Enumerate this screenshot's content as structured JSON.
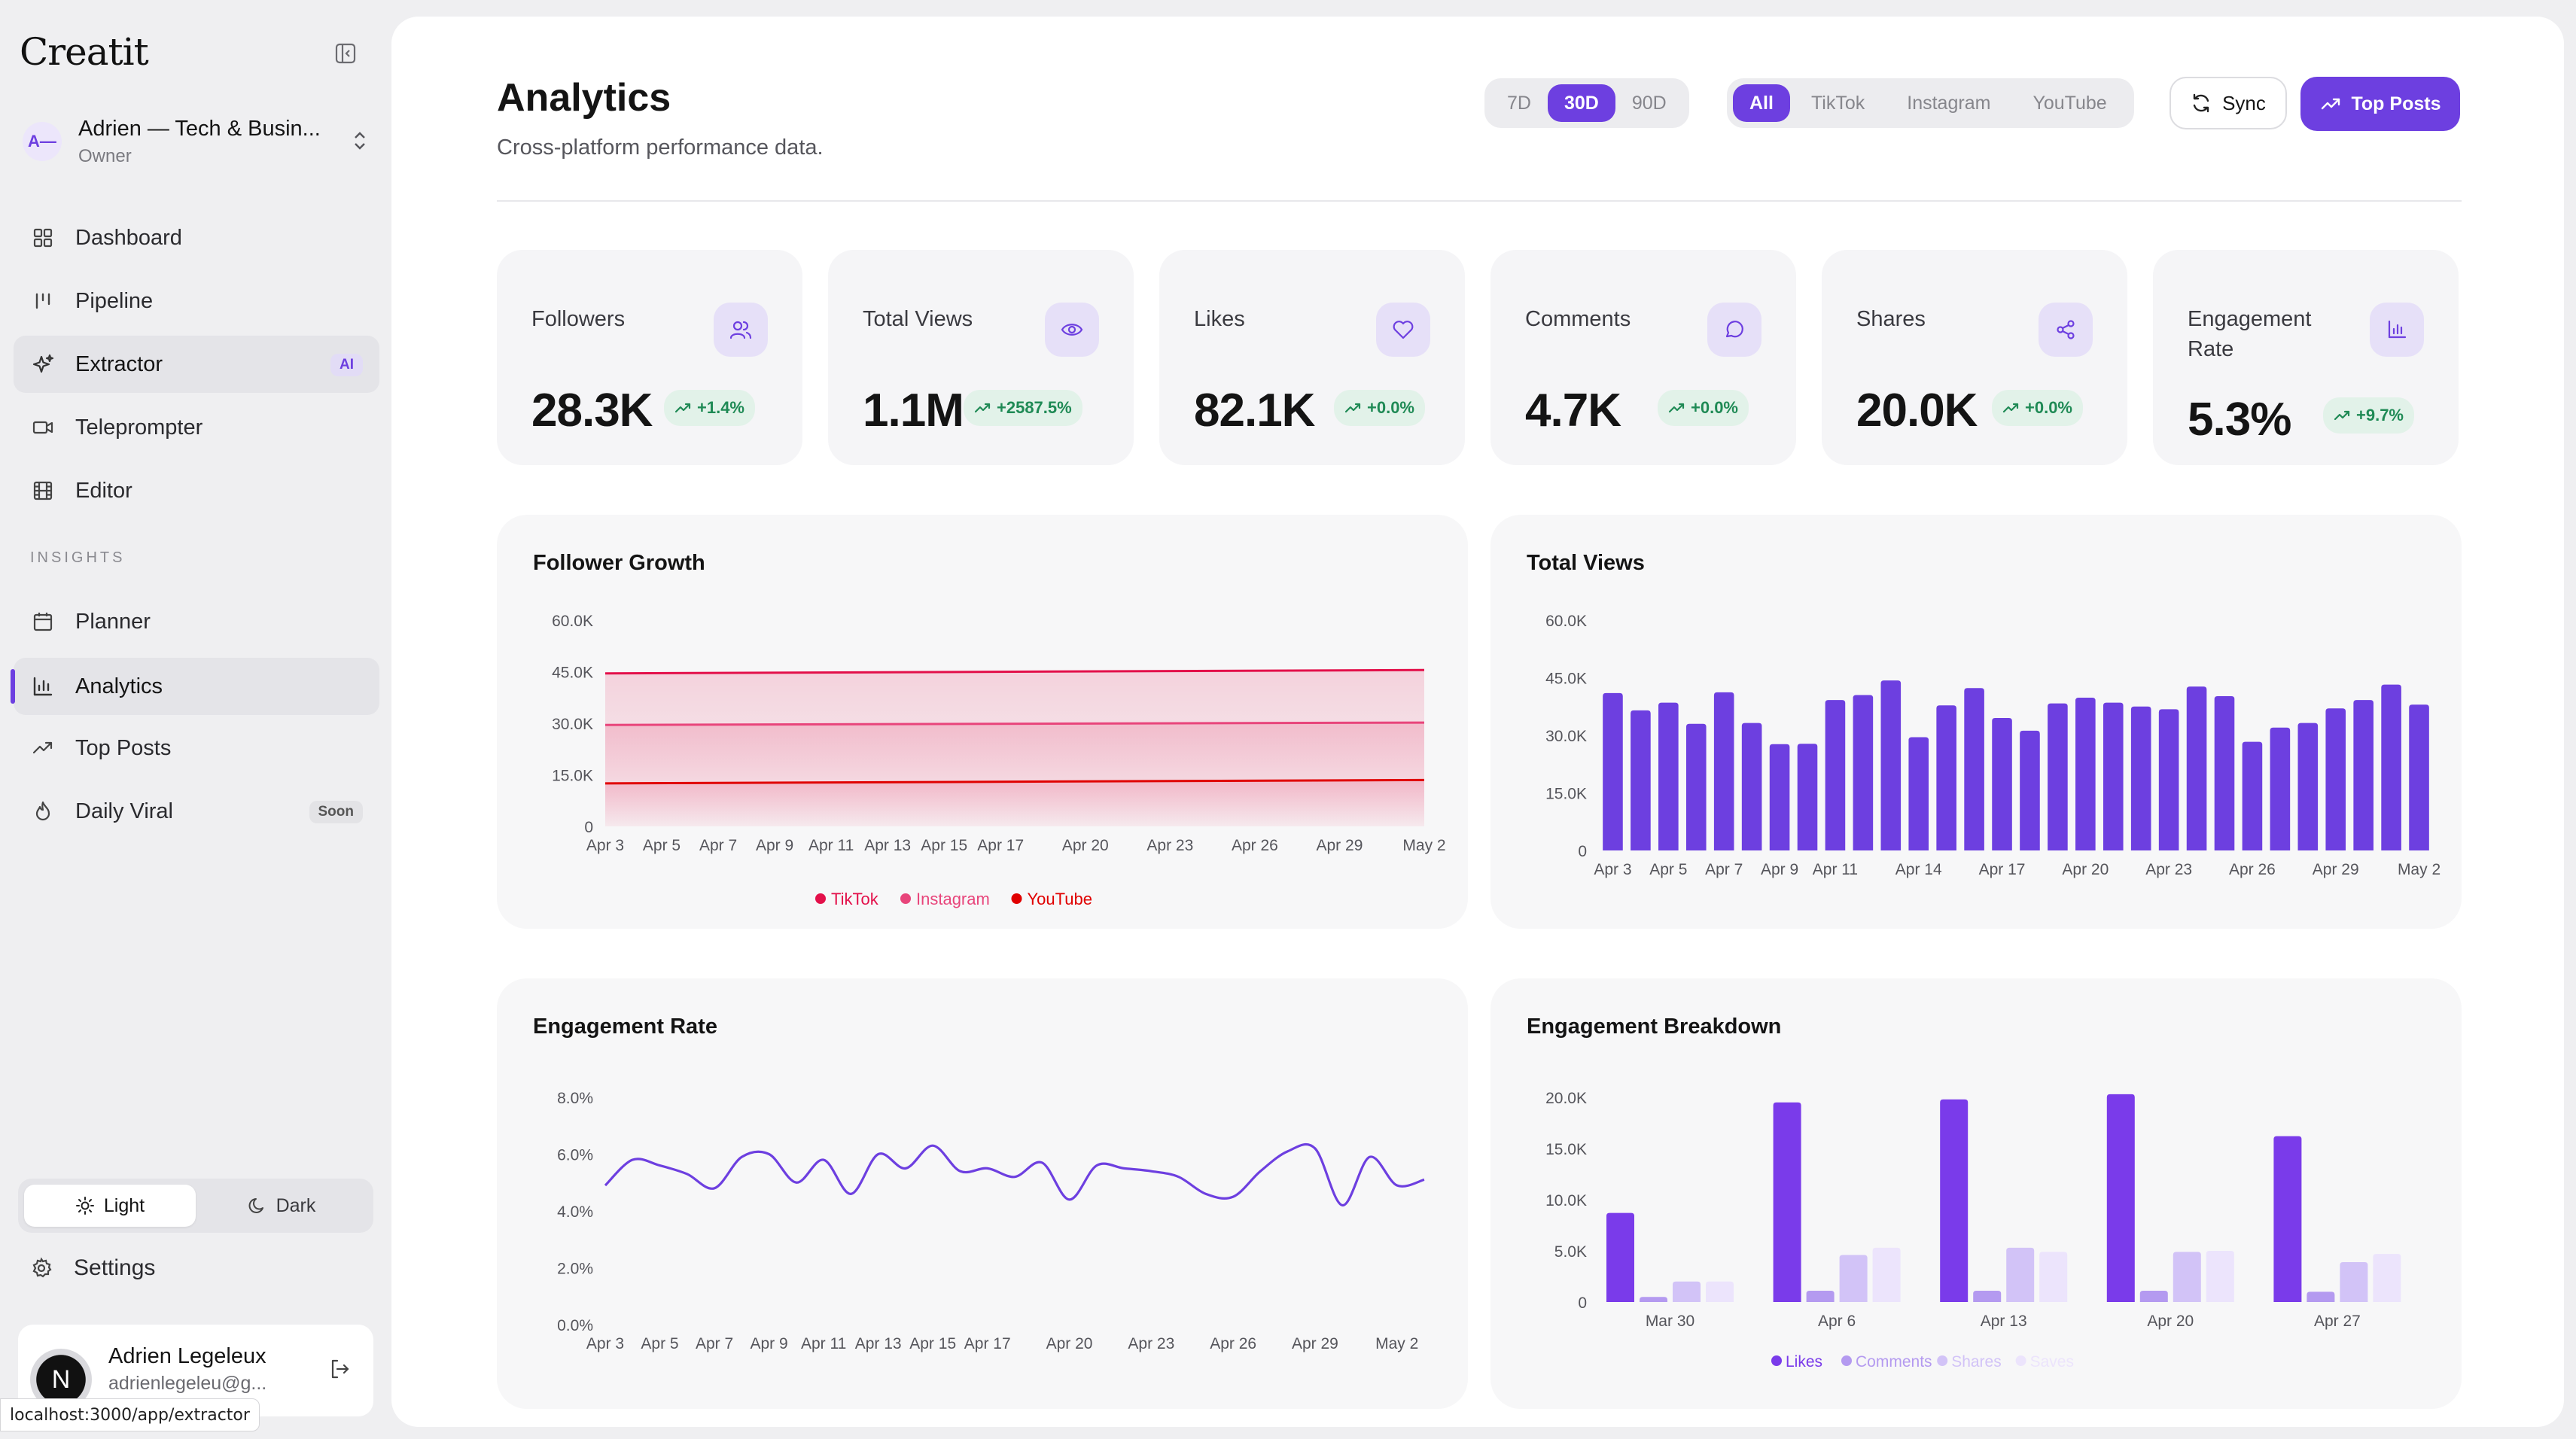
{
  "app": {
    "brand": "Creatit"
  },
  "workspace": {
    "initials": "A—",
    "name": "Adrien — Tech & Busin...",
    "role": "Owner"
  },
  "nav": {
    "items": [
      {
        "label": "Dashboard",
        "icon": "grid-icon"
      },
      {
        "label": "Pipeline",
        "icon": "pipeline-icon"
      },
      {
        "label": "Extractor",
        "icon": "sparkles-icon",
        "badge": "AI"
      },
      {
        "label": "Teleprompter",
        "icon": "video-icon"
      },
      {
        "label": "Editor",
        "icon": "film-icon"
      }
    ],
    "section_label": "INSIGHTS",
    "insights": [
      {
        "label": "Planner",
        "icon": "calendar-icon"
      },
      {
        "label": "Analytics",
        "icon": "bar-chart-icon"
      },
      {
        "label": "Top Posts",
        "icon": "trending-icon"
      },
      {
        "label": "Daily Viral",
        "icon": "flame-icon",
        "badge": "Soon"
      }
    ]
  },
  "theme": {
    "light": "Light",
    "dark": "Dark",
    "selected": "Light"
  },
  "settings_label": "Settings",
  "user": {
    "initial": "N",
    "name": "Adrien Legeleux",
    "email": "adrienlegeleu@g..."
  },
  "status_url": "localhost:3000/app/extractor",
  "header": {
    "title": "Analytics",
    "subtitle": "Cross-platform performance data.",
    "ranges": [
      "7D",
      "30D",
      "90D"
    ],
    "range_selected": "30D",
    "platforms": [
      "All",
      "TikTok",
      "Instagram",
      "YouTube"
    ],
    "platform_selected": "All",
    "sync_label": "Sync",
    "top_posts_label": "Top Posts"
  },
  "stats": [
    {
      "label": "Followers",
      "value": "28.3K",
      "delta": "+1.4%",
      "icon": "users-icon"
    },
    {
      "label": "Total Views",
      "value": "1.1M",
      "delta": "+2587.5%",
      "icon": "eye-icon"
    },
    {
      "label": "Likes",
      "value": "82.1K",
      "delta": "+0.0%",
      "icon": "heart-icon"
    },
    {
      "label": "Comments",
      "value": "4.7K",
      "delta": "+0.0%",
      "icon": "message-icon"
    },
    {
      "label": "Shares",
      "value": "20.0K",
      "delta": "+0.0%",
      "icon": "share-icon"
    },
    {
      "label": "Engagement Rate",
      "value": "5.3%",
      "delta": "+9.7%",
      "icon": "bar-chart-icon"
    }
  ],
  "colors": {
    "accent": "#6d3fe0",
    "tiktok": "#e3104a",
    "instagram": "#e8457b",
    "youtube": "#e00000",
    "likes": "#7a3bea",
    "comments": "#b49af0",
    "shares": "#d2c3f7",
    "saves": "#ece4fc",
    "positive": "#1f8a55"
  },
  "chart_data": [
    {
      "type": "area",
      "title": "Follower Growth",
      "yticks": [
        "0",
        "15.0K",
        "30.0K",
        "45.0K",
        "60.0K"
      ],
      "ylim": [
        0,
        60000
      ],
      "x_ticks": [
        "Apr 3",
        "Apr 5",
        "Apr 7",
        "Apr 9",
        "Apr 11",
        "Apr 13",
        "Apr 15",
        "Apr 17",
        "Apr 20",
        "Apr 23",
        "Apr 26",
        "Apr 29",
        "May 2"
      ],
      "x_tick_days": [
        0,
        2,
        4,
        6,
        8,
        10,
        12,
        14,
        17,
        20,
        23,
        26,
        29
      ],
      "series": [
        {
          "name": "TikTok",
          "start": 44500,
          "end": 45500
        },
        {
          "name": "Instagram",
          "start": 29500,
          "end": 30200
        },
        {
          "name": "YouTube",
          "start": 12500,
          "end": 13500
        }
      ],
      "legend": "bottom"
    },
    {
      "type": "bar",
      "title": "Total Views",
      "yticks": [
        "0",
        "15.0K",
        "30.0K",
        "45.0K",
        "60.0K"
      ],
      "ylim": [
        0,
        60000
      ],
      "x_ticks": [
        "Apr 3",
        "Apr 5",
        "Apr 7",
        "Apr 9",
        "Apr 11",
        "Apr 14",
        "Apr 17",
        "Apr 20",
        "Apr 23",
        "Apr 26",
        "Apr 29",
        "May 2"
      ],
      "x_tick_index": [
        0,
        2,
        4,
        6,
        8,
        11,
        14,
        17,
        20,
        23,
        26,
        29
      ],
      "values": [
        41000,
        36500,
        38500,
        33000,
        41200,
        33200,
        27700,
        27800,
        39200,
        40500,
        44300,
        29500,
        37800,
        42300,
        34500,
        31200,
        38300,
        39800,
        38500,
        37500,
        36800,
        42700,
        40200,
        28300,
        32000,
        33200,
        37000,
        39200,
        43200,
        38000
      ]
    },
    {
      "type": "line",
      "title": "Engagement Rate",
      "yticks": [
        "0.0%",
        "2.0%",
        "4.0%",
        "6.0%",
        "8.0%"
      ],
      "ylim": [
        0,
        8
      ],
      "x_ticks": [
        "Apr 3",
        "Apr 5",
        "Apr 7",
        "Apr 9",
        "Apr 11",
        "Apr 13",
        "Apr 15",
        "Apr 17",
        "Apr 20",
        "Apr 23",
        "Apr 26",
        "Apr 29",
        "May 2"
      ],
      "x_tick_days": [
        0,
        2,
        4,
        6,
        8,
        10,
        12,
        14,
        17,
        20,
        23,
        26,
        29
      ],
      "values": [
        4.9,
        5.8,
        5.6,
        5.3,
        4.8,
        5.9,
        6.0,
        5.0,
        5.8,
        4.6,
        6.0,
        5.5,
        6.3,
        5.4,
        5.5,
        5.2,
        5.7,
        4.4,
        5.6,
        5.5,
        5.4,
        5.2,
        4.6,
        4.5,
        5.4,
        6.1,
        6.2,
        4.2,
        5.9,
        4.9,
        5.1
      ]
    },
    {
      "type": "bar",
      "title": "Engagement Breakdown",
      "yticks": [
        "0",
        "5.0K",
        "10.0K",
        "15.0K",
        "20.0K"
      ],
      "ylim": [
        0,
        20000
      ],
      "categories": [
        "Mar 30",
        "Apr 6",
        "Apr 13",
        "Apr 20",
        "Apr 27"
      ],
      "series": [
        {
          "name": "Likes",
          "values": [
            8700,
            19500,
            19800,
            20300,
            16200
          ]
        },
        {
          "name": "Comments",
          "values": [
            500,
            1100,
            1100,
            1100,
            1000
          ]
        },
        {
          "name": "Shares",
          "values": [
            2000,
            4600,
            5300,
            4900,
            3900
          ]
        },
        {
          "name": "Saves",
          "values": [
            2000,
            5300,
            4900,
            5000,
            4700
          ]
        }
      ],
      "legend": "bottom"
    }
  ]
}
